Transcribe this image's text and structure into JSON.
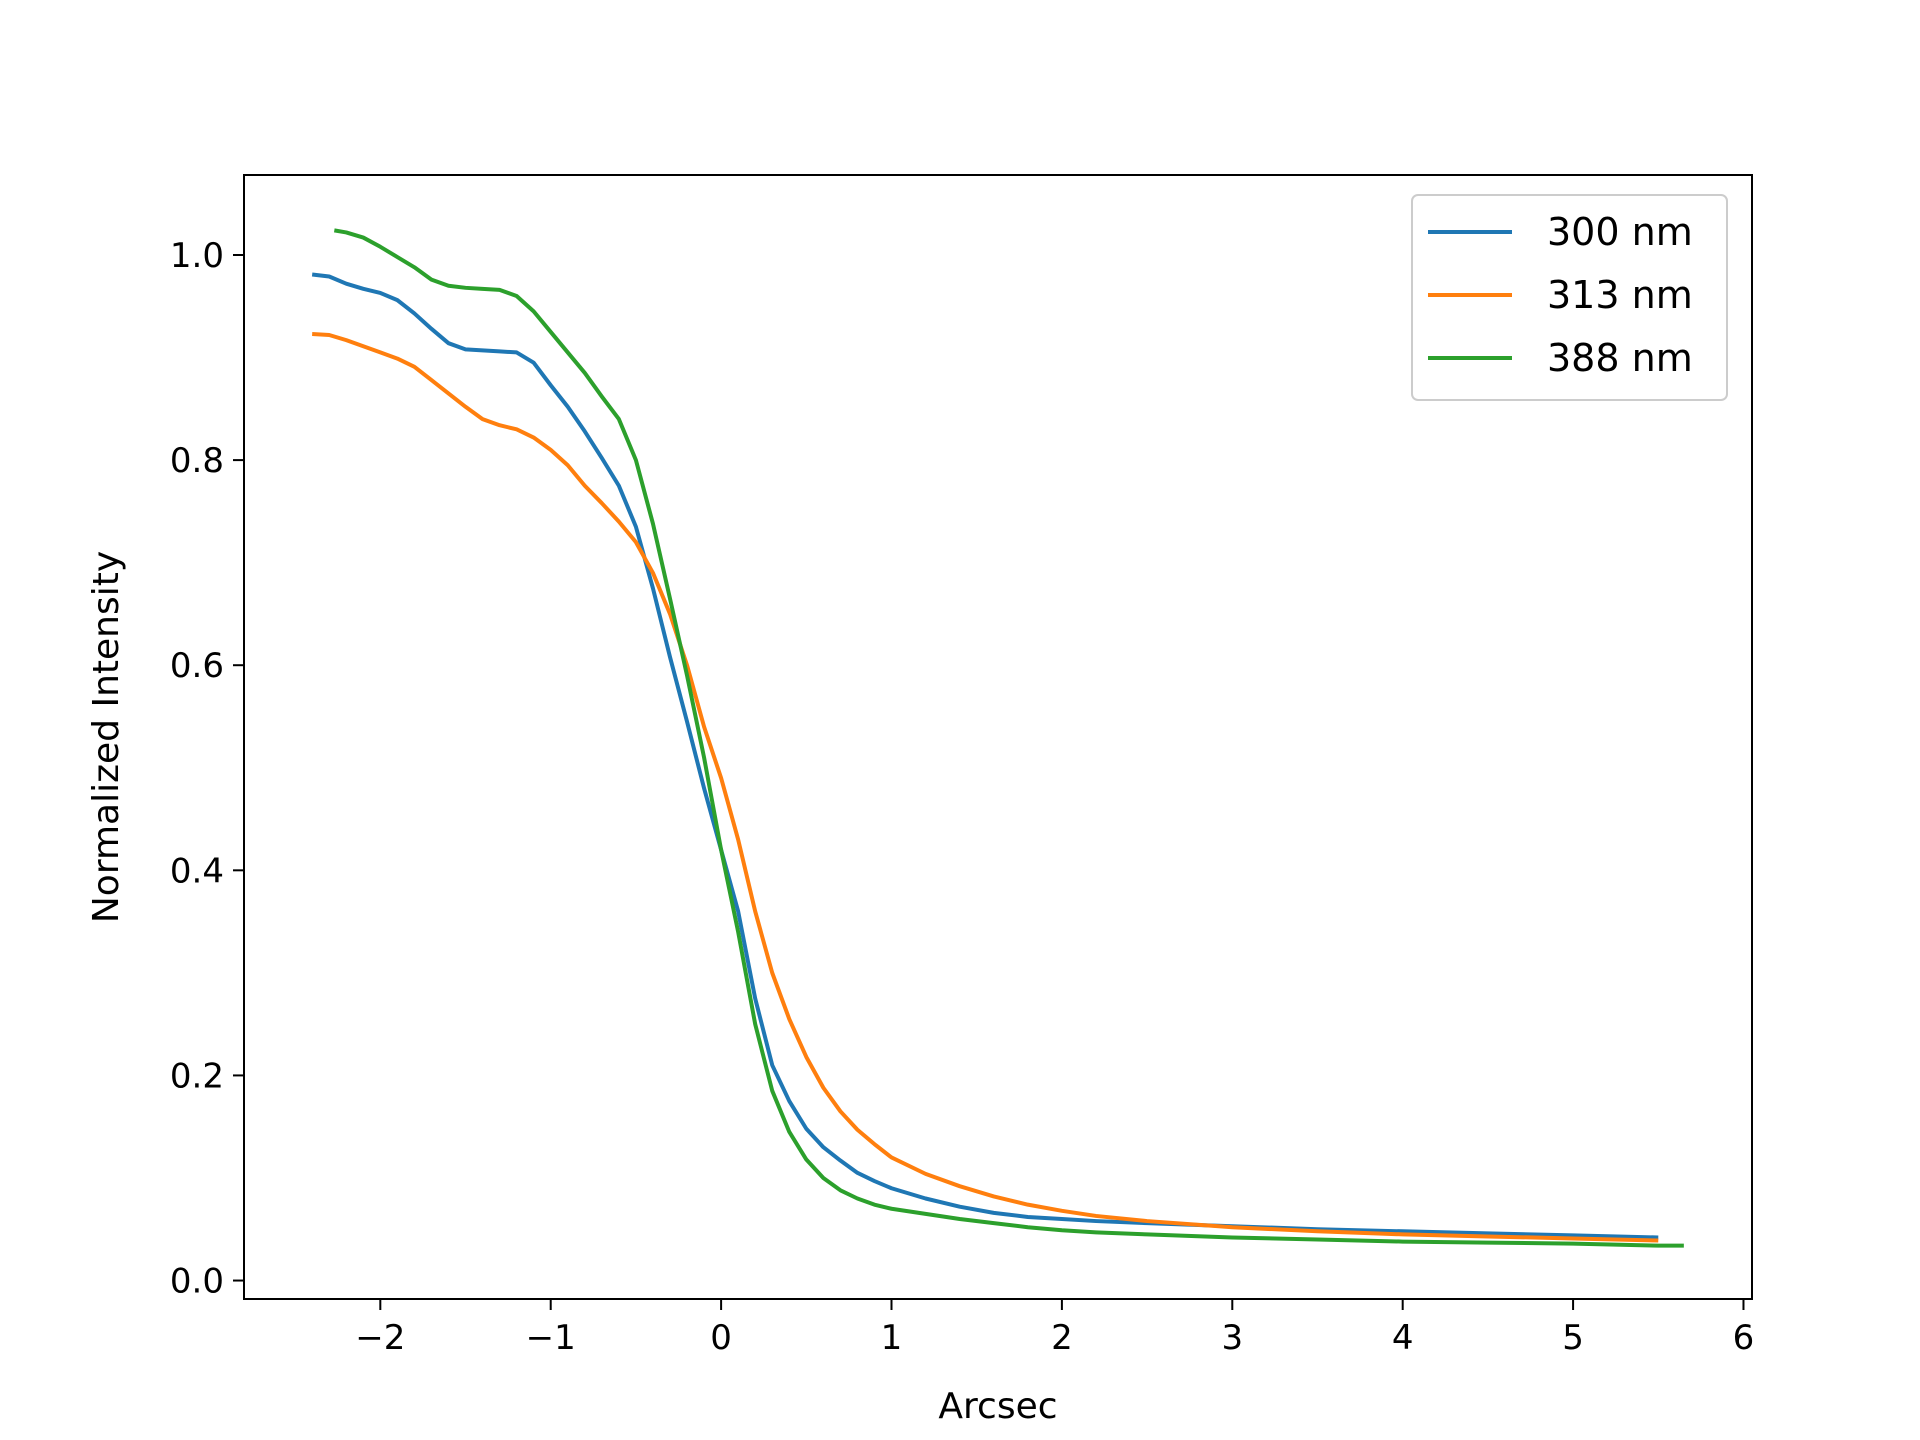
{
  "chart_data": {
    "type": "line",
    "title": "",
    "xlabel": "Arcsec",
    "ylabel": "Normalized Intensity",
    "xlim": [
      -2.8,
      6.05
    ],
    "ylim": [
      -0.018,
      1.078
    ],
    "xticks": [
      -2,
      -1,
      0,
      1,
      2,
      3,
      4,
      5,
      6
    ],
    "xtick_labels": [
      "−2",
      "−1",
      "0",
      "1",
      "2",
      "3",
      "4",
      "5",
      "6"
    ],
    "yticks": [
      0.0,
      0.2,
      0.4,
      0.6,
      0.8,
      1.0
    ],
    "ytick_labels": [
      "0.0",
      "0.2",
      "0.4",
      "0.6",
      "0.8",
      "1.0"
    ],
    "grid": false,
    "legend_position": "top-right",
    "series": [
      {
        "name": "300 nm",
        "color": "#1f77b4",
        "x": [
          -2.4,
          -2.3,
          -2.2,
          -2.1,
          -2.0,
          -1.9,
          -1.8,
          -1.7,
          -1.6,
          -1.5,
          -1.4,
          -1.3,
          -1.2,
          -1.1,
          -1.0,
          -0.9,
          -0.8,
          -0.7,
          -0.6,
          -0.5,
          -0.4,
          -0.3,
          -0.2,
          -0.1,
          0.0,
          0.1,
          0.2,
          0.3,
          0.4,
          0.5,
          0.6,
          0.7,
          0.8,
          0.9,
          1.0,
          1.2,
          1.4,
          1.6,
          1.8,
          2.0,
          2.2,
          2.5,
          3.0,
          3.5,
          4.0,
          4.5,
          5.0,
          5.5
        ],
        "y": [
          0.981,
          0.979,
          0.972,
          0.967,
          0.963,
          0.956,
          0.943,
          0.928,
          0.914,
          0.908,
          0.907,
          0.906,
          0.905,
          0.895,
          0.873,
          0.852,
          0.828,
          0.802,
          0.775,
          0.735,
          0.675,
          0.608,
          0.545,
          0.48,
          0.42,
          0.36,
          0.275,
          0.21,
          0.175,
          0.148,
          0.13,
          0.117,
          0.105,
          0.097,
          0.09,
          0.08,
          0.072,
          0.066,
          0.062,
          0.06,
          0.058,
          0.056,
          0.053,
          0.05,
          0.048,
          0.046,
          0.044,
          0.042
        ]
      },
      {
        "name": "313 nm",
        "color": "#ff7f0e",
        "x": [
          -2.4,
          -2.3,
          -2.2,
          -2.1,
          -2.0,
          -1.9,
          -1.8,
          -1.7,
          -1.6,
          -1.5,
          -1.4,
          -1.3,
          -1.2,
          -1.1,
          -1.0,
          -0.9,
          -0.8,
          -0.7,
          -0.6,
          -0.5,
          -0.4,
          -0.3,
          -0.2,
          -0.1,
          0.0,
          0.1,
          0.2,
          0.3,
          0.4,
          0.5,
          0.6,
          0.7,
          0.8,
          0.9,
          1.0,
          1.2,
          1.4,
          1.6,
          1.8,
          2.0,
          2.2,
          2.5,
          3.0,
          3.5,
          4.0,
          4.5,
          5.0,
          5.5
        ],
        "y": [
          0.923,
          0.922,
          0.917,
          0.911,
          0.905,
          0.899,
          0.891,
          0.878,
          0.865,
          0.852,
          0.84,
          0.834,
          0.83,
          0.822,
          0.81,
          0.795,
          0.775,
          0.758,
          0.74,
          0.72,
          0.69,
          0.65,
          0.6,
          0.54,
          0.49,
          0.43,
          0.36,
          0.3,
          0.255,
          0.218,
          0.188,
          0.165,
          0.147,
          0.133,
          0.12,
          0.104,
          0.092,
          0.082,
          0.074,
          0.068,
          0.063,
          0.058,
          0.052,
          0.048,
          0.045,
          0.043,
          0.041,
          0.039
        ]
      },
      {
        "name": "388 nm",
        "color": "#2ca02c",
        "x": [
          -2.27,
          -2.2,
          -2.1,
          -2.0,
          -1.9,
          -1.8,
          -1.7,
          -1.6,
          -1.5,
          -1.4,
          -1.3,
          -1.2,
          -1.1,
          -1.0,
          -0.9,
          -0.8,
          -0.7,
          -0.6,
          -0.5,
          -0.4,
          -0.3,
          -0.2,
          -0.1,
          0.0,
          0.1,
          0.2,
          0.3,
          0.4,
          0.5,
          0.6,
          0.7,
          0.8,
          0.9,
          1.0,
          1.2,
          1.4,
          1.6,
          1.8,
          2.0,
          2.2,
          2.5,
          3.0,
          3.5,
          4.0,
          4.5,
          5.0,
          5.5,
          5.65
        ],
        "y": [
          1.024,
          1.022,
          1.017,
          1.008,
          0.998,
          0.988,
          0.976,
          0.97,
          0.968,
          0.967,
          0.966,
          0.96,
          0.945,
          0.925,
          0.905,
          0.885,
          0.862,
          0.84,
          0.8,
          0.738,
          0.665,
          0.59,
          0.51,
          0.42,
          0.34,
          0.25,
          0.185,
          0.145,
          0.118,
          0.1,
          0.088,
          0.08,
          0.074,
          0.07,
          0.065,
          0.06,
          0.056,
          0.052,
          0.049,
          0.047,
          0.045,
          0.042,
          0.04,
          0.038,
          0.037,
          0.036,
          0.034,
          0.034
        ]
      }
    ]
  }
}
